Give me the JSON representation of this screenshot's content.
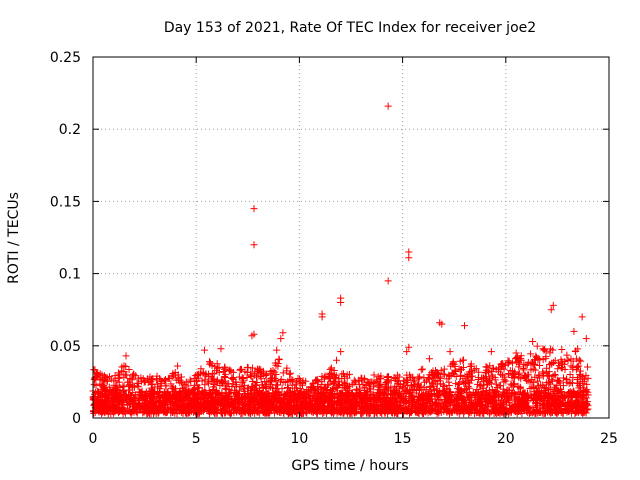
{
  "chart_data": {
    "type": "scatter",
    "title": "Day 153 of 2021, Rate Of TEC Index for receiver joe2",
    "xlabel": "GPS time / hours",
    "ylabel": "ROTI / TECUs",
    "xlim": [
      0,
      25
    ],
    "ylim": [
      0,
      0.25
    ],
    "xticks": [
      "0",
      "5",
      "10",
      "15",
      "20",
      "25"
    ],
    "yticks": [
      "0",
      "0.05",
      "0.1",
      "0.15",
      "0.2",
      "0.25"
    ],
    "grid": true,
    "marker": "+",
    "color": "#ff0000",
    "series": [
      {
        "name": "ROTI",
        "outliers": [
          {
            "x": 14.3,
            "y": 0.216
          },
          {
            "x": 7.8,
            "y": 0.145
          },
          {
            "x": 7.8,
            "y": 0.12
          },
          {
            "x": 15.3,
            "y": 0.115
          },
          {
            "x": 15.3,
            "y": 0.111
          },
          {
            "x": 14.3,
            "y": 0.095
          },
          {
            "x": 12.0,
            "y": 0.083
          },
          {
            "x": 12.0,
            "y": 0.08
          },
          {
            "x": 22.3,
            "y": 0.078
          },
          {
            "x": 22.2,
            "y": 0.075
          },
          {
            "x": 11.1,
            "y": 0.072
          },
          {
            "x": 11.1,
            "y": 0.07
          },
          {
            "x": 23.7,
            "y": 0.07
          },
          {
            "x": 16.8,
            "y": 0.066
          },
          {
            "x": 16.9,
            "y": 0.065
          },
          {
            "x": 18.0,
            "y": 0.064
          },
          {
            "x": 23.3,
            "y": 0.06
          },
          {
            "x": 9.2,
            "y": 0.059
          },
          {
            "x": 7.8,
            "y": 0.058
          },
          {
            "x": 7.7,
            "y": 0.057
          },
          {
            "x": 9.1,
            "y": 0.055
          },
          {
            "x": 21.3,
            "y": 0.053
          },
          {
            "x": 23.9,
            "y": 0.055
          },
          {
            "x": 15.3,
            "y": 0.049
          },
          {
            "x": 15.2,
            "y": 0.046
          },
          {
            "x": 5.4,
            "y": 0.047
          },
          {
            "x": 6.2,
            "y": 0.048
          },
          {
            "x": 8.9,
            "y": 0.047
          },
          {
            "x": 12.0,
            "y": 0.046
          },
          {
            "x": 17.3,
            "y": 0.046
          },
          {
            "x": 19.3,
            "y": 0.046
          },
          {
            "x": 1.6,
            "y": 0.043
          },
          {
            "x": 4.1,
            "y": 0.036
          },
          {
            "x": 11.8,
            "y": 0.04
          },
          {
            "x": 16.3,
            "y": 0.041
          },
          {
            "x": 20.5,
            "y": 0.045
          },
          {
            "x": 21.8,
            "y": 0.048
          }
        ],
        "envelope": {
          "hours": [
            0,
            0.5,
            1,
            1.5,
            2,
            2.5,
            3,
            3.5,
            4,
            4.5,
            5,
            5.5,
            6,
            6.5,
            7,
            7.5,
            8,
            8.5,
            9,
            9.5,
            10,
            10.5,
            11,
            11.5,
            12,
            12.5,
            13,
            13.5,
            14,
            14.5,
            15,
            15.5,
            16,
            16.5,
            17,
            17.5,
            18,
            18.5,
            19,
            19.5,
            20,
            20.5,
            21,
            21.5,
            22,
            22.5,
            23,
            23.5,
            24
          ],
          "max_roti": [
            0.035,
            0.03,
            0.028,
            0.038,
            0.032,
            0.03,
            0.03,
            0.028,
            0.033,
            0.025,
            0.03,
            0.04,
            0.038,
            0.035,
            0.032,
            0.038,
            0.035,
            0.03,
            0.045,
            0.032,
            0.028,
            0.025,
            0.028,
            0.035,
            0.032,
            0.03,
            0.028,
            0.03,
            0.03,
            0.028,
            0.032,
            0.03,
            0.035,
            0.033,
            0.036,
            0.04,
            0.042,
            0.035,
            0.038,
            0.035,
            0.04,
            0.042,
            0.045,
            0.05,
            0.048,
            0.05,
            0.045,
            0.048,
            0.035
          ]
        }
      }
    ]
  }
}
